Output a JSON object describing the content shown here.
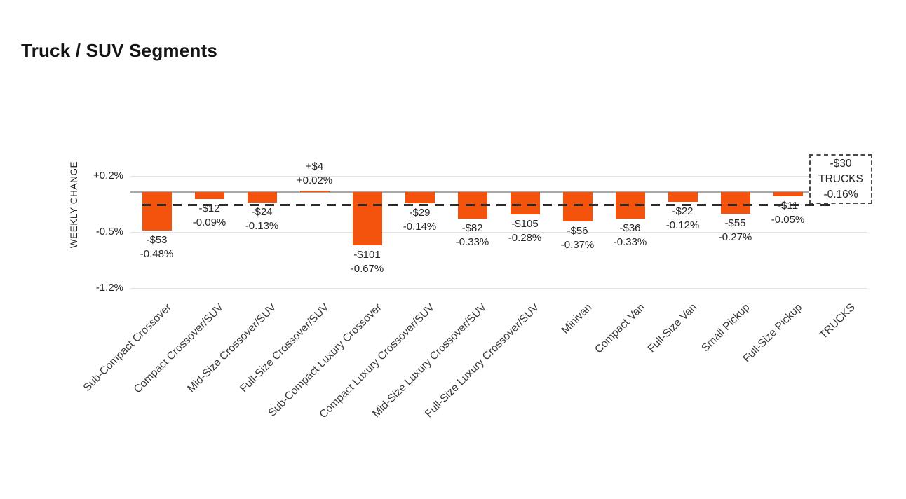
{
  "chart_data": {
    "type": "bar",
    "title": "Truck / SUV Segments",
    "ylabel": "WEEKLY CHANGE",
    "xlabel": "",
    "yticks": [
      {
        "label": "+0.2%",
        "value": 0.2
      },
      {
        "label": "-0.5%",
        "value": -0.5
      },
      {
        "label": "-1.2%",
        "value": -1.2
      }
    ],
    "ylim": [
      -1.3,
      0.3
    ],
    "grid": true,
    "legend_position": "none",
    "series": [
      {
        "category": "Sub-Compact Crossover",
        "dollar": -53,
        "pct": -0.48,
        "dollar_label": "-$53",
        "pct_label": "-0.48%"
      },
      {
        "category": "Compact Crossover/SUV",
        "dollar": -12,
        "pct": -0.09,
        "dollar_label": "-$12",
        "pct_label": "-0.09%"
      },
      {
        "category": "Mid-Size Crossover/SUV",
        "dollar": -24,
        "pct": -0.13,
        "dollar_label": "-$24",
        "pct_label": "-0.13%"
      },
      {
        "category": "Full-Size Crossover/SUV",
        "dollar": 4,
        "pct": 0.02,
        "dollar_label": "+$4",
        "pct_label": "+0.02%"
      },
      {
        "category": "Sub-Compact Luxury Crossover",
        "dollar": -101,
        "pct": -0.67,
        "dollar_label": "-$101",
        "pct_label": "-0.67%"
      },
      {
        "category": "Compact Luxury Crossover/SUV",
        "dollar": -29,
        "pct": -0.14,
        "dollar_label": "-$29",
        "pct_label": "-0.14%"
      },
      {
        "category": "Mid-Size Luxury Crossover/SUV",
        "dollar": -82,
        "pct": -0.33,
        "dollar_label": "-$82",
        "pct_label": "-0.33%"
      },
      {
        "category": "Full-Size Luxury Crossover/SUV",
        "dollar": -105,
        "pct": -0.28,
        "dollar_label": "-$105",
        "pct_label": "-0.28%"
      },
      {
        "category": "Minivan",
        "dollar": -56,
        "pct": -0.37,
        "dollar_label": "-$56",
        "pct_label": "-0.37%"
      },
      {
        "category": "Compact Van",
        "dollar": -36,
        "pct": -0.33,
        "dollar_label": "-$36",
        "pct_label": "-0.33%"
      },
      {
        "category": "Full-Size Van",
        "dollar": -22,
        "pct": -0.12,
        "dollar_label": "-$22",
        "pct_label": "-0.12%"
      },
      {
        "category": "Small Pickup",
        "dollar": -55,
        "pct": -0.27,
        "dollar_label": "-$55",
        "pct_label": "-0.27%"
      },
      {
        "category": "Full-Size Pickup",
        "dollar": -11,
        "pct": -0.05,
        "dollar_label": "-$11",
        "pct_label": "-0.05%"
      }
    ],
    "summary": {
      "category": "TRUCKS",
      "dollar": -30,
      "pct": -0.16,
      "dollar_label": "-$30",
      "pct_label": "-0.16%"
    },
    "reference_line_pct": -0.16,
    "colors": {
      "bar": "#f4530e",
      "grid": "#e3e3e3",
      "zero_axis": "#a8a8a8",
      "dash_line": "#2b2b2b",
      "text": "#262626"
    }
  }
}
